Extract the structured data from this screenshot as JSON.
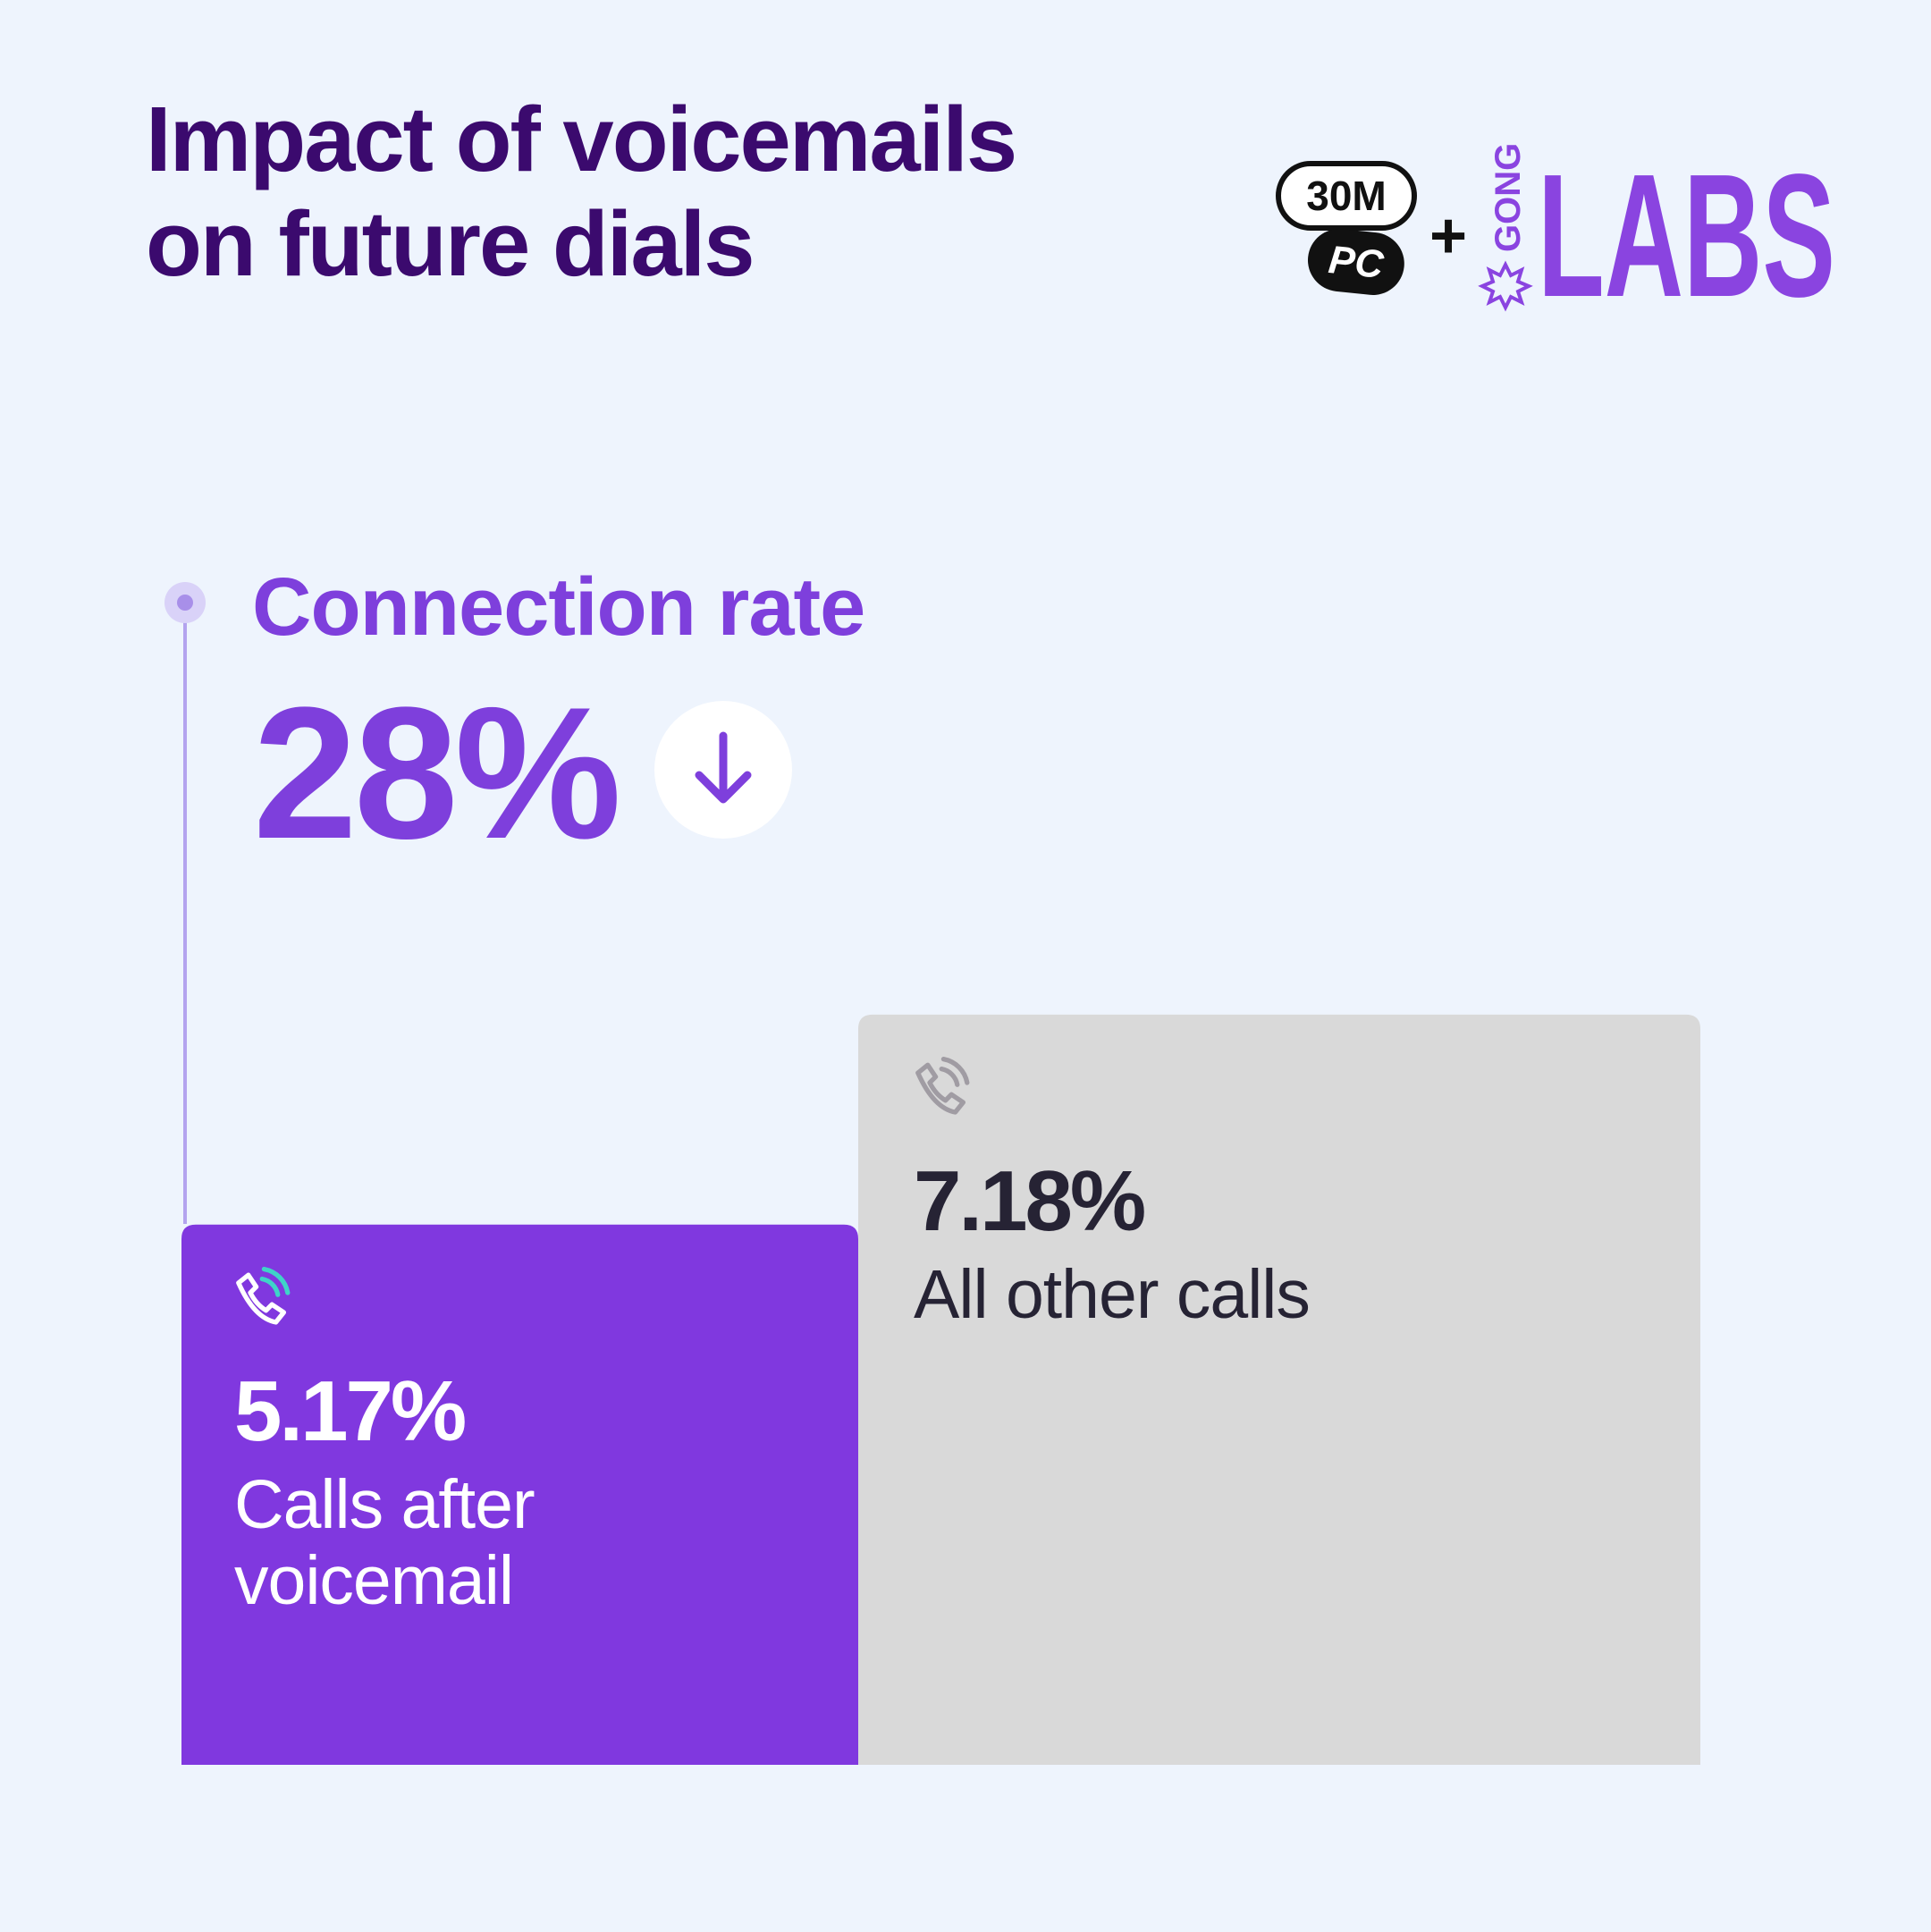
{
  "logo": {
    "badge_top": "30M",
    "badge_bottom": "PC",
    "plus": "+",
    "brand": "GONG",
    "name": "LABS"
  },
  "chart_data": {
    "type": "bar",
    "title": "Impact of voicemails on future dials",
    "annotation": {
      "label": "Connection rate",
      "value_label": "28%"
    },
    "categories": [
      "Calls after voicemail",
      "All other calls"
    ],
    "values": [
      5.17,
      7.18
    ],
    "value_labels": [
      "5.17%",
      "7.18%"
    ],
    "colors": [
      "#8038df",
      "#d9d9d9"
    ],
    "ylim": [
      -1.6,
      8
    ]
  }
}
